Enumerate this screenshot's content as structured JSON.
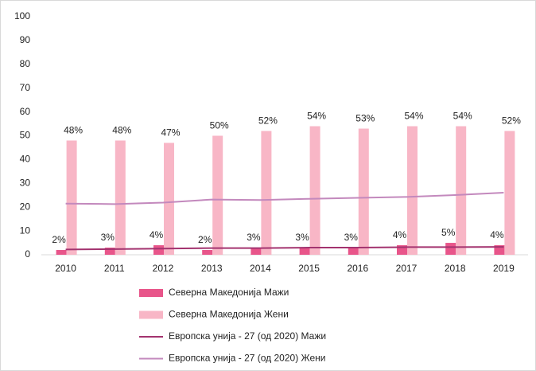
{
  "chart_data": {
    "type": "bar",
    "categories": [
      "2010",
      "2011",
      "2012",
      "2013",
      "2014",
      "2015",
      "2016",
      "2017",
      "2018",
      "2019"
    ],
    "series": [
      {
        "name": "Северна Македонија Мажи",
        "mark": "bar",
        "color": "#e8558a",
        "values": [
          2,
          3,
          4,
          2,
          3,
          3,
          3,
          4,
          5,
          4
        ],
        "value_labels": [
          "2%",
          "3%",
          "4%",
          "2%",
          "3%",
          "3%",
          "3%",
          "4%",
          "5%",
          "4%"
        ]
      },
      {
        "name": "Северна Македонија Жени",
        "mark": "bar",
        "color": "#f8b6c6",
        "values": [
          48,
          48,
          47,
          50,
          52,
          54,
          53,
          54,
          54,
          52
        ],
        "value_labels": [
          "48%",
          "48%",
          "47%",
          "50%",
          "52%",
          "54%",
          "53%",
          "54%",
          "54%",
          "52%"
        ]
      },
      {
        "name": "Европска унија - 27 (од 2020) Мажи",
        "mark": "line",
        "color": "#a3336f",
        "values": [
          2.2,
          2.4,
          2.6,
          2.8,
          2.8,
          3.0,
          3.0,
          3.2,
          3.2,
          3.3
        ]
      },
      {
        "name": "Европска унија - 27 (од 2020) Жени",
        "mark": "line",
        "color": "#c389bd",
        "values": [
          21.5,
          21.3,
          21.9,
          23.2,
          23.0,
          23.5,
          23.9,
          24.3,
          25.1,
          26.1
        ]
      }
    ],
    "ylim": [
      0,
      100
    ],
    "yticks": [
      0,
      10,
      20,
      30,
      40,
      50,
      60,
      70,
      80,
      90,
      100
    ],
    "grid": false,
    "legend": "bottom"
  }
}
